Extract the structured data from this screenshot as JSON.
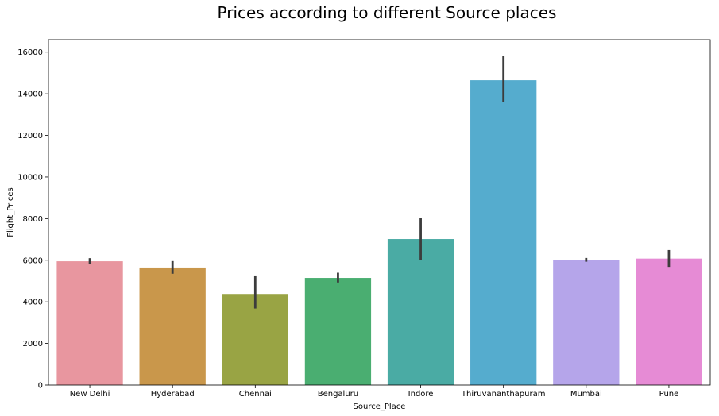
{
  "chart_data": {
    "type": "bar",
    "title": "Prices according to different Source places",
    "xlabel": "Source_Place",
    "ylabel": "Flight_Prices",
    "categories": [
      "New Delhi",
      "Hyderabad",
      "Chennai",
      "Bengaluru",
      "Indore",
      "Thiruvananthapuram",
      "Mumbai",
      "Pune"
    ],
    "values": [
      5950,
      5650,
      4380,
      5150,
      7020,
      14650,
      6020,
      6080
    ],
    "error_low": [
      5820,
      5350,
      3680,
      4930,
      6000,
      13600,
      5930,
      5680
    ],
    "error_high": [
      6100,
      5960,
      5230,
      5400,
      8030,
      15800,
      6110,
      6490
    ],
    "colors": [
      "#e8969f",
      "#c9974b",
      "#99a444",
      "#4aae71",
      "#4aaba4",
      "#55acce",
      "#b5a5ea",
      "#e68bd5"
    ],
    "error_color": "#3c3c3c",
    "yticks": [
      0,
      2000,
      4000,
      6000,
      8000,
      10000,
      12000,
      14000,
      16000
    ],
    "ylim": [
      0,
      16600
    ],
    "grid": false,
    "legend": "none"
  }
}
